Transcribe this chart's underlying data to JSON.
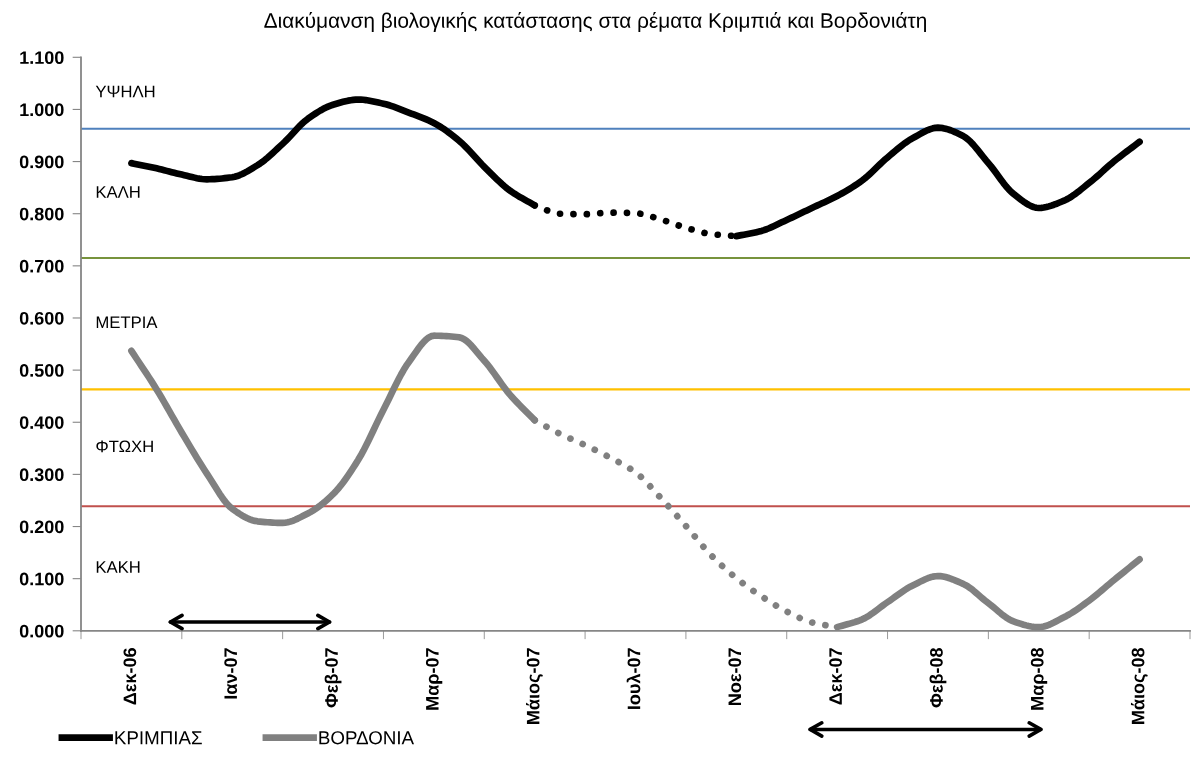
{
  "chart_data": {
    "type": "line",
    "title": "Διακύμανση βιολογικής κατάστασης στα ρέματα Κριμπιά και Βορδονιάτη",
    "categories": [
      "Δεκ-06",
      null,
      null,
      null,
      "Ιαν-07",
      null,
      null,
      null,
      "Φεβ-07",
      null,
      null,
      null,
      "Μαρ-07",
      null,
      null,
      null,
      "Μάιος-07",
      null,
      null,
      null,
      "Ιουλ-07",
      null,
      null,
      null,
      "Νοε-07",
      null,
      null,
      null,
      "Δεκ-07",
      null,
      null,
      null,
      "Φεβ-08",
      null,
      null,
      null,
      "Μαρ-08",
      null,
      null,
      null,
      "Μάιος-08"
    ],
    "series": [
      {
        "name": "ΚΡΙΜΠΙΑΣ",
        "color": "#000000",
        "line_style": "solid",
        "values": [
          0.897,
          0.887,
          0.875,
          0.866,
          0.87,
          0.893,
          0.934,
          0.982,
          1.009,
          1.019,
          1.011,
          0.994,
          0.974,
          0.94,
          0.89,
          0.845,
          0.816,
          null,
          null,
          null,
          null,
          null,
          null,
          null,
          null,
          null,
          null,
          null,
          null,
          null,
          null,
          null,
          null,
          null,
          null,
          null,
          null,
          null,
          null,
          null,
          null
        ]
      },
      {
        "color": "#000000",
        "line_style": "dotted",
        "values": [
          null,
          null,
          null,
          null,
          null,
          null,
          null,
          null,
          null,
          null,
          null,
          null,
          null,
          null,
          null,
          null,
          0.816,
          0.8,
          0.799,
          0.802,
          0.801,
          0.789,
          0.773,
          0.761,
          0.757,
          null,
          null,
          null,
          null,
          null,
          null,
          null,
          null,
          null,
          null,
          null,
          null,
          null,
          null,
          null,
          null
        ]
      },
      {
        "color": "#000000",
        "line_style": "solid",
        "values": [
          null,
          null,
          null,
          null,
          null,
          null,
          null,
          null,
          null,
          null,
          null,
          null,
          null,
          null,
          null,
          null,
          null,
          null,
          null,
          null,
          null,
          null,
          null,
          null,
          0.757,
          0.767,
          0.788,
          0.811,
          0.834,
          0.864,
          0.908,
          0.945,
          0.965,
          0.949,
          0.897,
          0.838,
          0.811,
          0.825,
          0.859,
          0.901,
          0.938
        ]
      },
      {
        "name": "ΒΟΡΔΟΝΙΑ",
        "color": "#808080",
        "line_style": "solid",
        "values": [
          0.537,
          0.463,
          0.38,
          0.301,
          0.234,
          0.21,
          0.207,
          0.225,
          0.262,
          0.328,
          0.424,
          0.515,
          0.566,
          0.563,
          0.518,
          0.454,
          0.404,
          null,
          null,
          null,
          null,
          null,
          null,
          null,
          null,
          null,
          null,
          null,
          null,
          null,
          null,
          null,
          null,
          null,
          null,
          null,
          null,
          null,
          null,
          null,
          null
        ]
      },
      {
        "color": "#808080",
        "line_style": "dotted",
        "values": [
          null,
          null,
          null,
          null,
          null,
          null,
          null,
          null,
          null,
          null,
          null,
          null,
          null,
          null,
          null,
          null,
          0.404,
          0.378,
          0.356,
          0.332,
          0.304,
          0.255,
          0.201,
          0.145,
          0.101,
          0.066,
          0.037,
          0.016,
          0.007,
          null,
          null,
          null,
          null,
          null,
          null,
          null,
          null,
          null,
          null,
          null,
          null
        ]
      },
      {
        "color": "#808080",
        "line_style": "solid",
        "values": [
          null,
          null,
          null,
          null,
          null,
          null,
          null,
          null,
          null,
          null,
          null,
          null,
          null,
          null,
          null,
          null,
          null,
          null,
          null,
          null,
          null,
          null,
          null,
          null,
          null,
          null,
          null,
          null,
          0.007,
          0.022,
          0.055,
          0.087,
          0.105,
          0.09,
          0.053,
          0.018,
          0.007,
          0.026,
          0.058,
          0.098,
          0.137
        ]
      }
    ],
    "ylim": [
      0,
      1.1
    ],
    "yticks": [
      {
        "value": 0,
        "label": "0.000"
      },
      {
        "value": 0.1,
        "label": "0.100"
      },
      {
        "value": 0.2,
        "label": "0.200"
      },
      {
        "value": 0.3,
        "label": "0.300"
      },
      {
        "value": 0.4,
        "label": "0.400"
      },
      {
        "value": 0.5,
        "label": "0.500"
      },
      {
        "value": 0.6,
        "label": "0.600"
      },
      {
        "value": 0.7,
        "label": "0.700"
      },
      {
        "value": 0.8,
        "label": "0.800"
      },
      {
        "value": 0.9,
        "label": "0.900"
      },
      {
        "value": 1.0,
        "label": "1.000"
      },
      {
        "value": 1.1,
        "label": "1.100"
      }
    ],
    "ref_lines": [
      {
        "axis": "y",
        "value": 0.963,
        "color": "#4f81bd"
      },
      {
        "axis": "y",
        "value": 0.715,
        "color": "#77933c"
      },
      {
        "axis": "y",
        "value": 0.463,
        "color": "#ffc000"
      },
      {
        "axis": "y",
        "value": 0.239,
        "color": "#c0504d"
      }
    ],
    "annotations": [
      "ΥΨΗΛΗ",
      "ΚΑΛΗ",
      "ΜΕΤΡΙΑ",
      "ΦΤΩΧΗ",
      "ΚΑΚΗ"
    ],
    "legend": "bottom left"
  }
}
